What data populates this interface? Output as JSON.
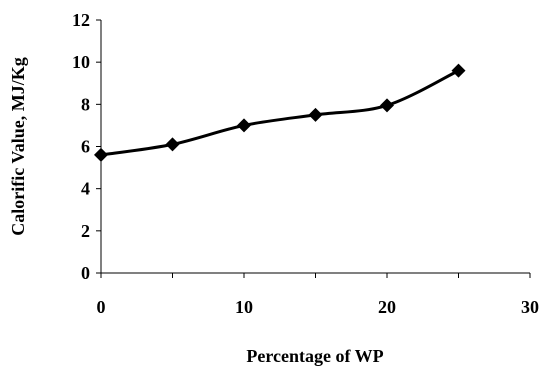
{
  "chart_data": {
    "type": "line",
    "xlabel": "Percentage of WP",
    "ylabel": "Calorific Value, MJ/Kg",
    "xlim": [
      0,
      30
    ],
    "ylim": [
      0,
      12
    ],
    "x_ticks": [
      0,
      10,
      20,
      30
    ],
    "y_ticks": [
      0,
      2,
      4,
      6,
      8,
      10,
      12
    ],
    "grid": false,
    "legend": "none",
    "marker": "diamond",
    "line_color": "#000000",
    "series": [
      {
        "x": [
          0,
          5,
          10,
          15,
          20,
          25
        ],
        "values": [
          5.6,
          6.1,
          7.0,
          7.5,
          7.95,
          9.6
        ]
      }
    ]
  }
}
